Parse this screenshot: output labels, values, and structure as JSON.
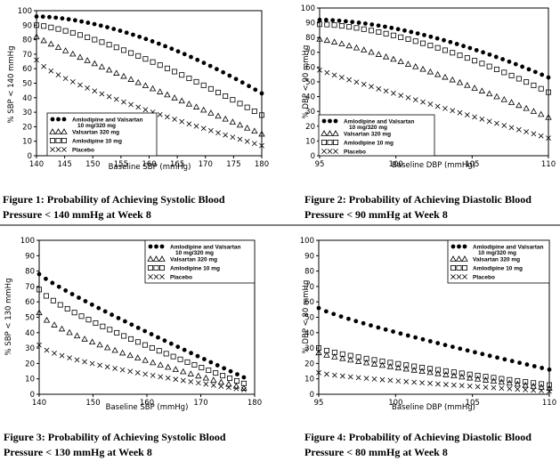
{
  "chart_data": [
    {
      "type": "scatter",
      "caption_line1": "Figure 1: Probability of Achieving Systolic Blood",
      "caption_line2": "Pressure < 140 mmHg at Week 8",
      "xlabel": "Baseline SBP (mmHg)",
      "ylabel": "% SBP < 140 mmHg",
      "xlim": [
        140,
        180
      ],
      "ylim": [
        0,
        100
      ],
      "xticks": [
        140,
        145,
        150,
        155,
        160,
        165,
        170,
        175,
        180
      ],
      "yticks": [
        0,
        10,
        20,
        30,
        40,
        50,
        60,
        70,
        80,
        90,
        100
      ],
      "legend_position": "bottom-left",
      "series": [
        {
          "name": "Amlodipine and Valsartan",
          "name_line2": "10 mg/320 mg",
          "marker": "dot",
          "start": [
            140,
            96
          ],
          "end": [
            180,
            43
          ],
          "exponent": 1.7,
          "count": 36
        },
        {
          "name": "Valsartan   320 mg",
          "marker": "triangle",
          "start": [
            140,
            82
          ],
          "end": [
            180,
            15
          ],
          "exponent": 0.95,
          "count": 32
        },
        {
          "name": "Amlodipine   10 mg",
          "marker": "square",
          "start": [
            140,
            90
          ],
          "end": [
            180,
            28
          ],
          "exponent": 1.35,
          "count": 32
        },
        {
          "name": "Placebo",
          "marker": "x",
          "start": [
            140,
            66
          ],
          "end": [
            180,
            7
          ],
          "exponent": 0.75,
          "count": 32
        }
      ]
    },
    {
      "type": "scatter",
      "caption_line1": "Figure 2: Probability of Achieving Diastolic Blood",
      "caption_line2": "Pressure < 90 mmHg at Week 8",
      "xlabel": "Baseline DBP (mmHg)",
      "ylabel": "% DBP < 90 mmHg",
      "xlim": [
        95,
        110
      ],
      "ylim": [
        0,
        100
      ],
      "xticks": [
        95,
        100,
        105,
        110
      ],
      "yticks": [
        0,
        10,
        20,
        30,
        40,
        50,
        60,
        70,
        80,
        90,
        100
      ],
      "legend_position": "bottom-left",
      "series": [
        {
          "name": "Amlodipine and Valsartan",
          "name_line2": "10 mg/320 mg",
          "marker": "dot",
          "start": [
            95,
            92
          ],
          "end": [
            110,
            53
          ],
          "exponent": 1.7,
          "count": 36
        },
        {
          "name": "Valsartan     320 mg",
          "marker": "triangle",
          "start": [
            95,
            79
          ],
          "end": [
            110,
            26
          ],
          "exponent": 1.2,
          "count": 32
        },
        {
          "name": "Amlodipine     10 mg",
          "marker": "square",
          "start": [
            95,
            89
          ],
          "end": [
            110,
            43
          ],
          "exponent": 1.6,
          "count": 32
        },
        {
          "name": "Placebo",
          "marker": "x",
          "start": [
            95,
            58
          ],
          "end": [
            110,
            12
          ],
          "exponent": 0.95,
          "count": 32
        }
      ]
    },
    {
      "type": "scatter",
      "caption_line1": "Figure 3: Probability of Achieving Systolic Blood",
      "caption_line2": "Pressure < 130 mmHg at Week 8",
      "xlabel": "Baseline SBP (mmHg)",
      "ylabel": "% SBP < 130 mmHg",
      "xlim": [
        140,
        180
      ],
      "ylim": [
        0,
        100
      ],
      "xticks": [
        140,
        150,
        160,
        170,
        180
      ],
      "yticks": [
        0,
        10,
        20,
        30,
        40,
        50,
        60,
        70,
        80,
        90,
        100
      ],
      "legend_position": "top-right",
      "series": [
        {
          "name": "Amlodipine and Valsartan",
          "name_line2": "10 mg/320 mg",
          "marker": "dot",
          "start": [
            140,
            78
          ],
          "end": [
            178,
            11
          ],
          "exponent": 0.9,
          "count": 32
        },
        {
          "name": "Valsartan      320 mg",
          "marker": "triangle",
          "start": [
            140,
            53
          ],
          "end": [
            178,
            4
          ],
          "exponent": 0.7,
          "count": 28
        },
        {
          "name": "Amlodipine      10 mg",
          "marker": "square",
          "start": [
            140,
            68
          ],
          "end": [
            178,
            7
          ],
          "exponent": 0.8,
          "count": 30
        },
        {
          "name": "Placebo",
          "marker": "x",
          "start": [
            140,
            32
          ],
          "end": [
            178,
            3
          ],
          "exponent": 0.65,
          "count": 28
        }
      ]
    },
    {
      "type": "scatter",
      "caption_line1": "Figure 4: Probability of Achieving Diastolic Blood",
      "caption_line2": "Pressure < 80 mmHg at Week 8",
      "xlabel": "Baseline DBP (mmHg)",
      "ylabel": "% DBP < 80 mmHg",
      "xlim": [
        95,
        110
      ],
      "ylim": [
        0,
        100
      ],
      "xticks": [
        95,
        100,
        105,
        110
      ],
      "yticks": [
        0,
        10,
        20,
        30,
        40,
        50,
        60,
        70,
        80,
        90,
        100
      ],
      "legend_position": "top-right",
      "series": [
        {
          "name": "Amlodipine and Valsartan",
          "name_line2": "10 mg/320 mg",
          "marker": "dot",
          "start": [
            95,
            56
          ],
          "end": [
            110,
            16
          ],
          "exponent": 0.85,
          "count": 32
        },
        {
          "name": "Valsartan      320 mg",
          "marker": "triangle",
          "start": [
            95,
            27
          ],
          "end": [
            110,
            4
          ],
          "exponent": 0.8,
          "count": 30
        },
        {
          "name": "Amlodipine      10 mg",
          "marker": "square",
          "start": [
            95,
            30
          ],
          "end": [
            110,
            6
          ],
          "exponent": 0.8,
          "count": 30
        },
        {
          "name": "Placebo",
          "marker": "x",
          "start": [
            95,
            14
          ],
          "end": [
            110,
            2
          ],
          "exponent": 0.75,
          "count": 30
        }
      ]
    }
  ]
}
